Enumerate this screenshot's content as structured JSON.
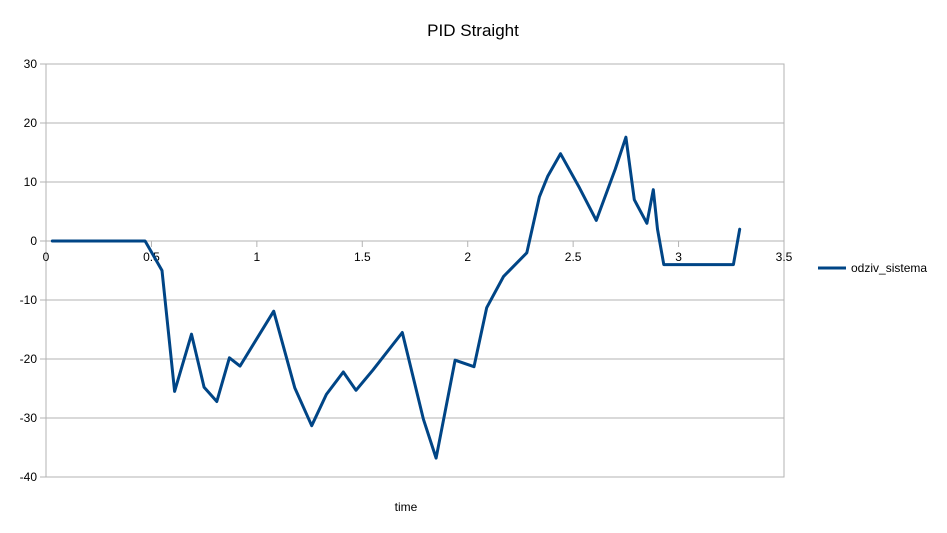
{
  "chart_data": {
    "type": "line",
    "title": "PID Straight",
    "xlabel": "time",
    "ylabel": "",
    "xlim": [
      0,
      3.5
    ],
    "ylim": [
      -40,
      30
    ],
    "xticks": [
      "0",
      "0.5",
      "1",
      "1.5",
      "2",
      "2.5",
      "3",
      "3.5"
    ],
    "yticks": [
      "30",
      "20",
      "10",
      "0",
      "-10",
      "-20",
      "-30",
      "-40"
    ],
    "grid": "horizontal",
    "legend_position": "right",
    "series": [
      {
        "name": "odziv_sistema",
        "color": "#004586",
        "x": [
          0.03,
          0.1,
          0.2,
          0.3,
          0.4,
          0.47,
          0.55,
          0.61,
          0.69,
          0.75,
          0.81,
          0.87,
          0.92,
          1.08,
          1.18,
          1.26,
          1.33,
          1.41,
          1.47,
          1.55,
          1.69,
          1.79,
          1.85,
          1.94,
          2.03,
          2.09,
          2.17,
          2.28,
          2.34,
          2.38,
          2.44,
          2.53,
          2.61,
          2.7,
          2.75,
          2.79,
          2.85,
          2.88,
          2.9,
          2.93,
          3.0,
          3.1,
          3.2,
          3.26,
          3.29
        ],
        "y": [
          0,
          0,
          0,
          0,
          0,
          0,
          -5,
          -25.5,
          -15.8,
          -24.8,
          -27.2,
          -19.8,
          -21.2,
          -11.9,
          -24.9,
          -31.3,
          -26,
          -22.2,
          -25.3,
          -21.9,
          -15.5,
          -30.2,
          -36.8,
          -20.2,
          -21.3,
          -11.3,
          -6,
          -2,
          7.5,
          11,
          14.8,
          9,
          3.5,
          12.2,
          17.6,
          7,
          3,
          8.7,
          2,
          -4,
          -4,
          -4,
          -4,
          -4,
          2
        ]
      }
    ]
  }
}
